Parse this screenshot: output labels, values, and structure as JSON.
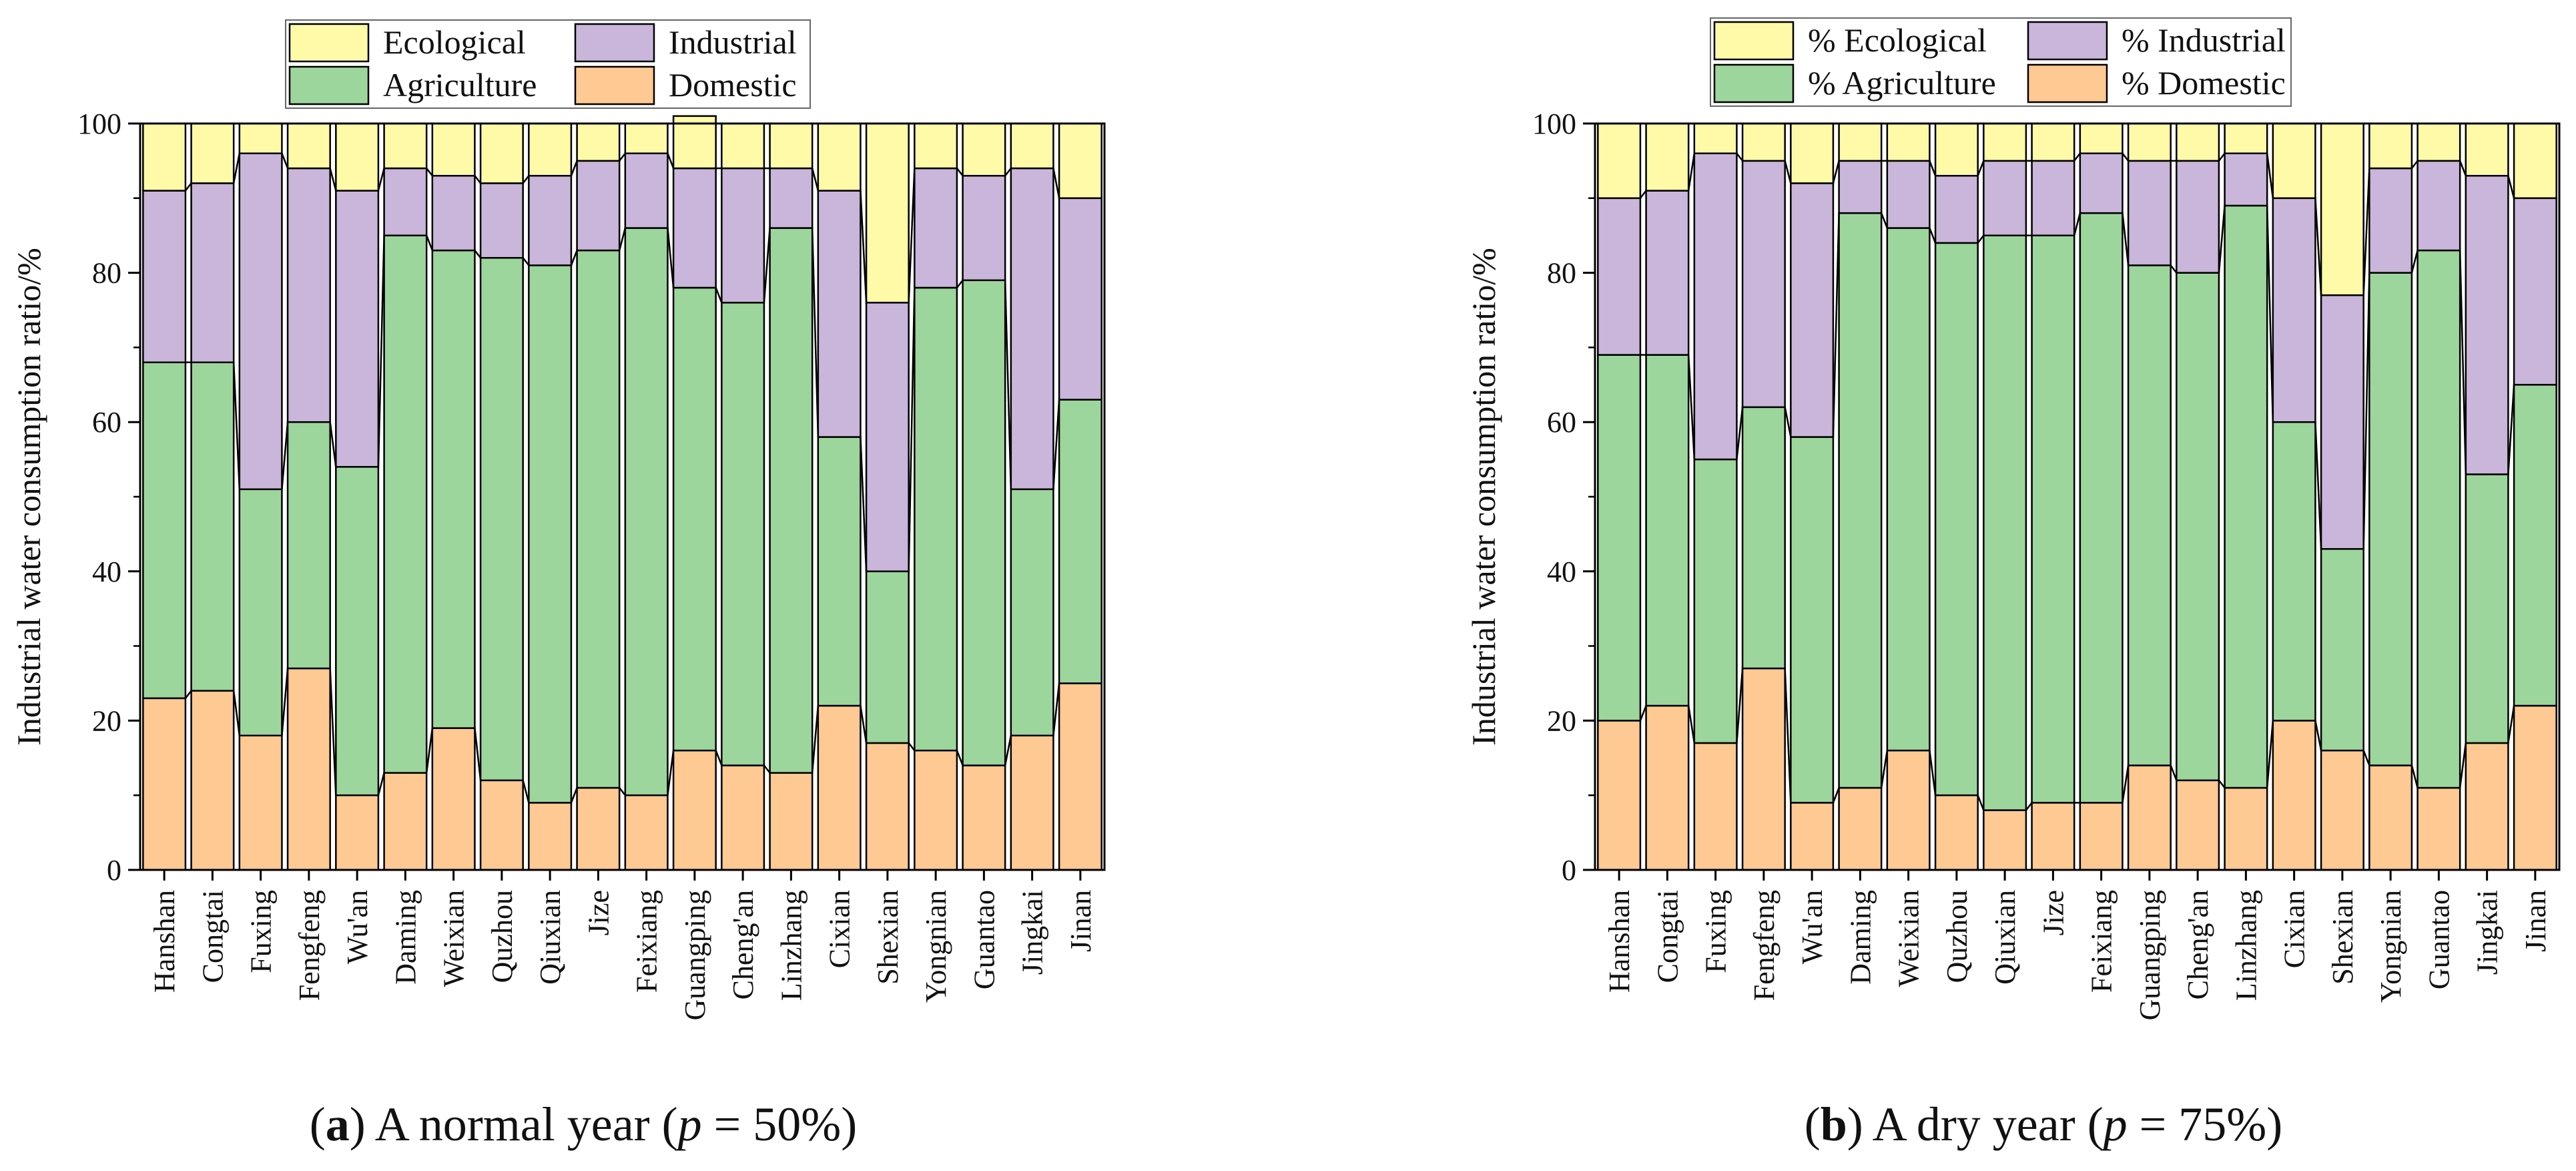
{
  "colors": {
    "Ecological": "#fffaa8",
    "Industrial": "#c9b6da",
    "Agriculture": "#9dd69c",
    "Domestic": "#ffc993"
  },
  "chart_data": [
    {
      "type": "bar",
      "stacked": true,
      "ylabel": "Industrial water consumption ratio/%",
      "ylim": [
        0,
        100
      ],
      "yticks": [
        "0",
        "20",
        "40",
        "60",
        "80",
        "100"
      ],
      "legend_labels": [
        "Ecological",
        "Industrial",
        "Agriculture",
        "Domestic"
      ],
      "caption": {
        "prefix": "(",
        "letter": "a",
        "text": ") A normal year (",
        "var": "p",
        "rest": " = 50%)"
      },
      "categories": [
        "Hanshan",
        "Congtai",
        "Fuxing",
        "Fengfeng",
        "Wu'an",
        "Daming",
        "Weixian",
        "Quzhou",
        "Qiuxian",
        "Jize",
        "Feixiang",
        "Guangping",
        "Cheng'an",
        "Linzhang",
        "Cixian",
        "Shexian",
        "Yongnian",
        "Guantao",
        "Jingkai",
        "Jinan"
      ],
      "series": [
        {
          "name": "Domestic",
          "values": [
            23,
            24,
            18,
            27,
            10,
            13,
            19,
            12,
            9,
            11,
            10,
            16,
            14,
            13,
            22,
            17,
            16,
            14,
            18,
            25
          ]
        },
        {
          "name": "Agriculture",
          "values": [
            45,
            44,
            33,
            33,
            44,
            72,
            64,
            70,
            72,
            72,
            76,
            62,
            62,
            73,
            36,
            23,
            62,
            65,
            33,
            38
          ]
        },
        {
          "name": "Industrial",
          "values": [
            23,
            24,
            45,
            34,
            37,
            9,
            10,
            10,
            12,
            12,
            10,
            16,
            18,
            8,
            33,
            36,
            16,
            14,
            43,
            27
          ]
        },
        {
          "name": "Ecological",
          "values": [
            9,
            8,
            4,
            6,
            9,
            6,
            7,
            8,
            7,
            5,
            4,
            7,
            6,
            6,
            9,
            24,
            6,
            7,
            6,
            10
          ]
        }
      ]
    },
    {
      "type": "bar",
      "stacked": true,
      "ylabel": "Industrial water consumption ratio/%",
      "ylim": [
        0,
        100
      ],
      "yticks": [
        "0",
        "20",
        "40",
        "60",
        "80",
        "100"
      ],
      "legend_labels": [
        "% Ecological",
        "% Industrial",
        "% Agriculture",
        "% Domestic"
      ],
      "caption": {
        "prefix": "(",
        "letter": "b",
        "text": ") A dry year (",
        "var": "p",
        "rest": " = 75%)"
      },
      "categories": [
        "Hanshan",
        "Congtai",
        "Fuxing",
        "Fengfeng",
        "Wu'an",
        "Daming",
        "Weixian",
        "Quzhou",
        "Qiuxian",
        "Jize",
        "Feixiang",
        "Guangping",
        "Cheng'an",
        "Linzhang",
        "Cixian",
        "Shexian",
        "Yongnian",
        "Guantao",
        "Jingkai",
        "Jinan"
      ],
      "series": [
        {
          "name": "Domestic",
          "values": [
            20,
            22,
            17,
            27,
            9,
            11,
            16,
            10,
            8,
            9,
            9,
            14,
            12,
            11,
            20,
            16,
            14,
            11,
            17,
            22
          ]
        },
        {
          "name": "Agriculture",
          "values": [
            49,
            47,
            38,
            35,
            49,
            77,
            70,
            74,
            77,
            76,
            79,
            67,
            68,
            78,
            40,
            27,
            66,
            72,
            36,
            43
          ]
        },
        {
          "name": "Industrial",
          "values": [
            21,
            22,
            41,
            33,
            34,
            7,
            9,
            9,
            10,
            10,
            8,
            14,
            15,
            7,
            30,
            34,
            14,
            12,
            40,
            25
          ]
        },
        {
          "name": "Ecological",
          "values": [
            10,
            9,
            4,
            5,
            8,
            5,
            5,
            7,
            5,
            5,
            4,
            5,
            5,
            4,
            10,
            23,
            6,
            5,
            7,
            10
          ]
        }
      ]
    }
  ]
}
